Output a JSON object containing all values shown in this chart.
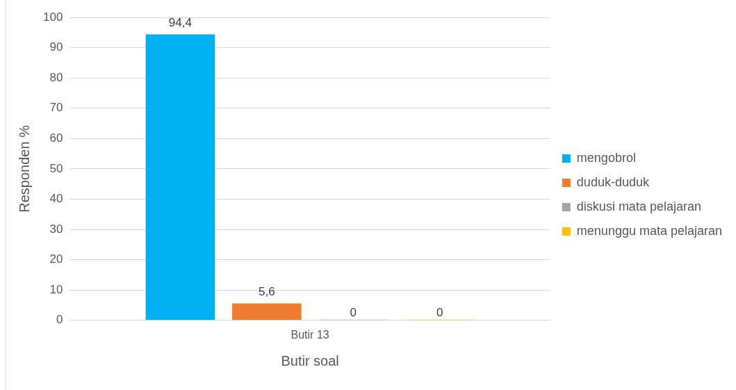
{
  "chart_data": {
    "type": "bar",
    "xlabel": "Butir soal",
    "ylabel": "Responden %",
    "categories": [
      "Butir 13"
    ],
    "series": [
      {
        "name": "mengobrol",
        "color": "#00b0f0",
        "values": [
          94.4
        ],
        "value_labels": [
          "94,4"
        ]
      },
      {
        "name": "duduk-duduk",
        "color": "#ed7d31",
        "values": [
          5.6
        ],
        "value_labels": [
          "5,6"
        ]
      },
      {
        "name": "diskusi mata pelajaran",
        "color": "#a5a5a5",
        "values": [
          0
        ],
        "value_labels": [
          "0"
        ]
      },
      {
        "name": "menunggu mata pelajaran",
        "color": "#ffc000",
        "values": [
          0
        ],
        "value_labels": [
          "0"
        ]
      }
    ],
    "ylim": [
      0,
      100
    ],
    "yticks": [
      0,
      10,
      20,
      30,
      40,
      50,
      60,
      70,
      80,
      90,
      100
    ],
    "grid": "y",
    "legend": "right"
  }
}
